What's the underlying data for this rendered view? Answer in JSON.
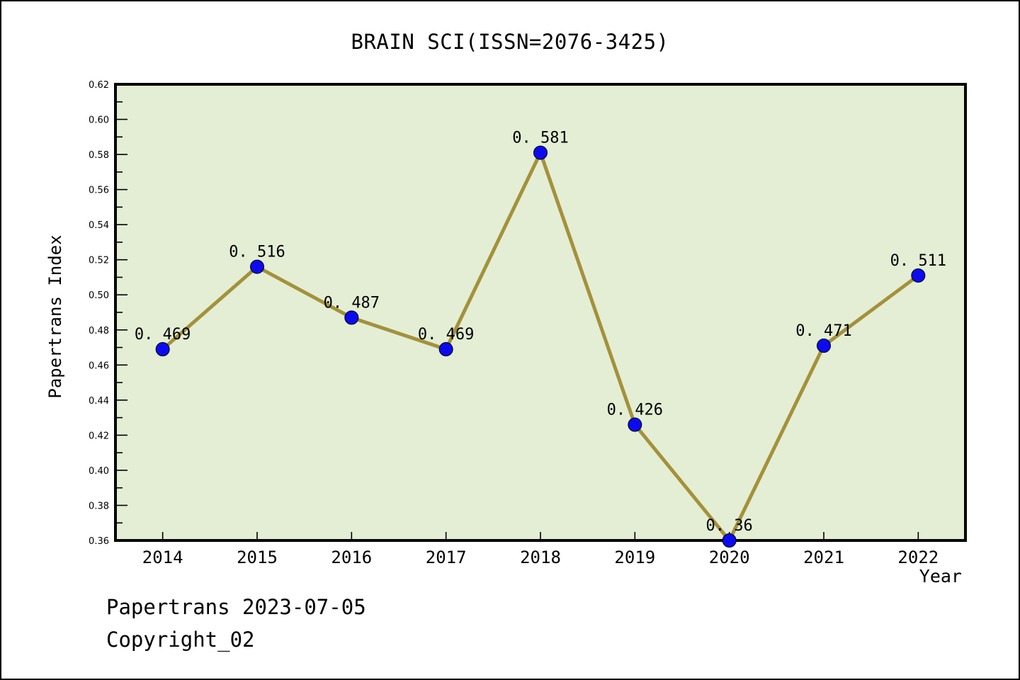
{
  "window": {
    "background": "#ffffff",
    "border_color": "#000000"
  },
  "chart": {
    "title": "BRAIN SCI(ISSN=2076-3425)",
    "xlabel": "Year",
    "ylabel": "Papertrans Index",
    "footer_line1": "Papertrans 2023-07-05",
    "footer_line2": "Copyright_02"
  },
  "chart_style": {
    "plot_bg": "#e3eed5",
    "line_color": "#a4913a",
    "marker_color": "#0b0bee",
    "marker_edge_color": "#000000",
    "axis_color": "#000000",
    "text_color": "#000000"
  },
  "chart_data": {
    "type": "line",
    "title": "BRAIN SCI(ISSN=2076-3425)",
    "xlabel": "Year",
    "ylabel": "Papertrans Index",
    "x": [
      2014,
      2015,
      2016,
      2017,
      2018,
      2019,
      2020,
      2021,
      2022
    ],
    "values": [
      0.469,
      0.516,
      0.487,
      0.469,
      0.581,
      0.426,
      0.36,
      0.471,
      0.511
    ],
    "point_labels": [
      "0. 469",
      "0. 516",
      "0. 487",
      "0. 469",
      "0. 581",
      "0. 426",
      "0. 36",
      "0. 471",
      "0. 511"
    ],
    "x_tick_labels": [
      "2014",
      "2015",
      "2016",
      "2017",
      "2018",
      "2019",
      "2020",
      "2021",
      "2022"
    ],
    "y_tick_labels": [
      "0.36",
      "0.38",
      "0.40",
      "0.42",
      "0.44",
      "0.46",
      "0.48",
      "0.50",
      "0.52",
      "0.54",
      "0.56",
      "0.58",
      "0.60",
      "0.62"
    ],
    "xlim": [
      2013.5,
      2022.5
    ],
    "ylim": [
      0.36,
      0.62
    ],
    "y_major_step": 0.02,
    "y_minor_step": 0.01,
    "grid": false,
    "legend": null
  }
}
